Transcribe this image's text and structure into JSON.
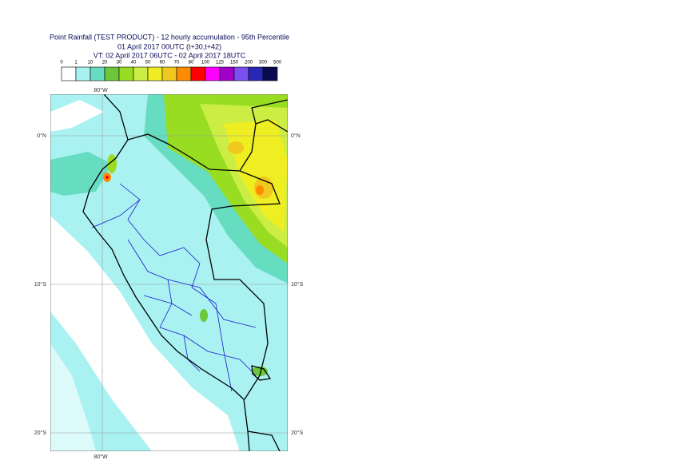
{
  "header": {
    "title": "Point Rainfall (TEST PRODUCT) - 12 hourly accumulation - 95th Percentile",
    "base": "01 April 2017 00UTC (t+30,t+42)",
    "valid": "VT: 02 April 2017 06UTC - 02 April 2017 18UTC"
  },
  "legend": {
    "thresholds": [
      0,
      1,
      10,
      20,
      30,
      40,
      50,
      60,
      70,
      80,
      100,
      125,
      150,
      200,
      300,
      500
    ],
    "colors": [
      "#ffffff",
      "#aaf2f2",
      "#66dcc0",
      "#6cc83a",
      "#99dd22",
      "#ccee44",
      "#eeee22",
      "#f0c81e",
      "#ff8c00",
      "#ff0000",
      "#ff00ff",
      "#a000c8",
      "#7a50f0",
      "#2828b4",
      "#0a0a50"
    ]
  },
  "map": {
    "longitude_labels": [
      "80°W"
    ],
    "latitude_labels": [
      "0°N",
      "10°S",
      "20°S"
    ]
  }
}
